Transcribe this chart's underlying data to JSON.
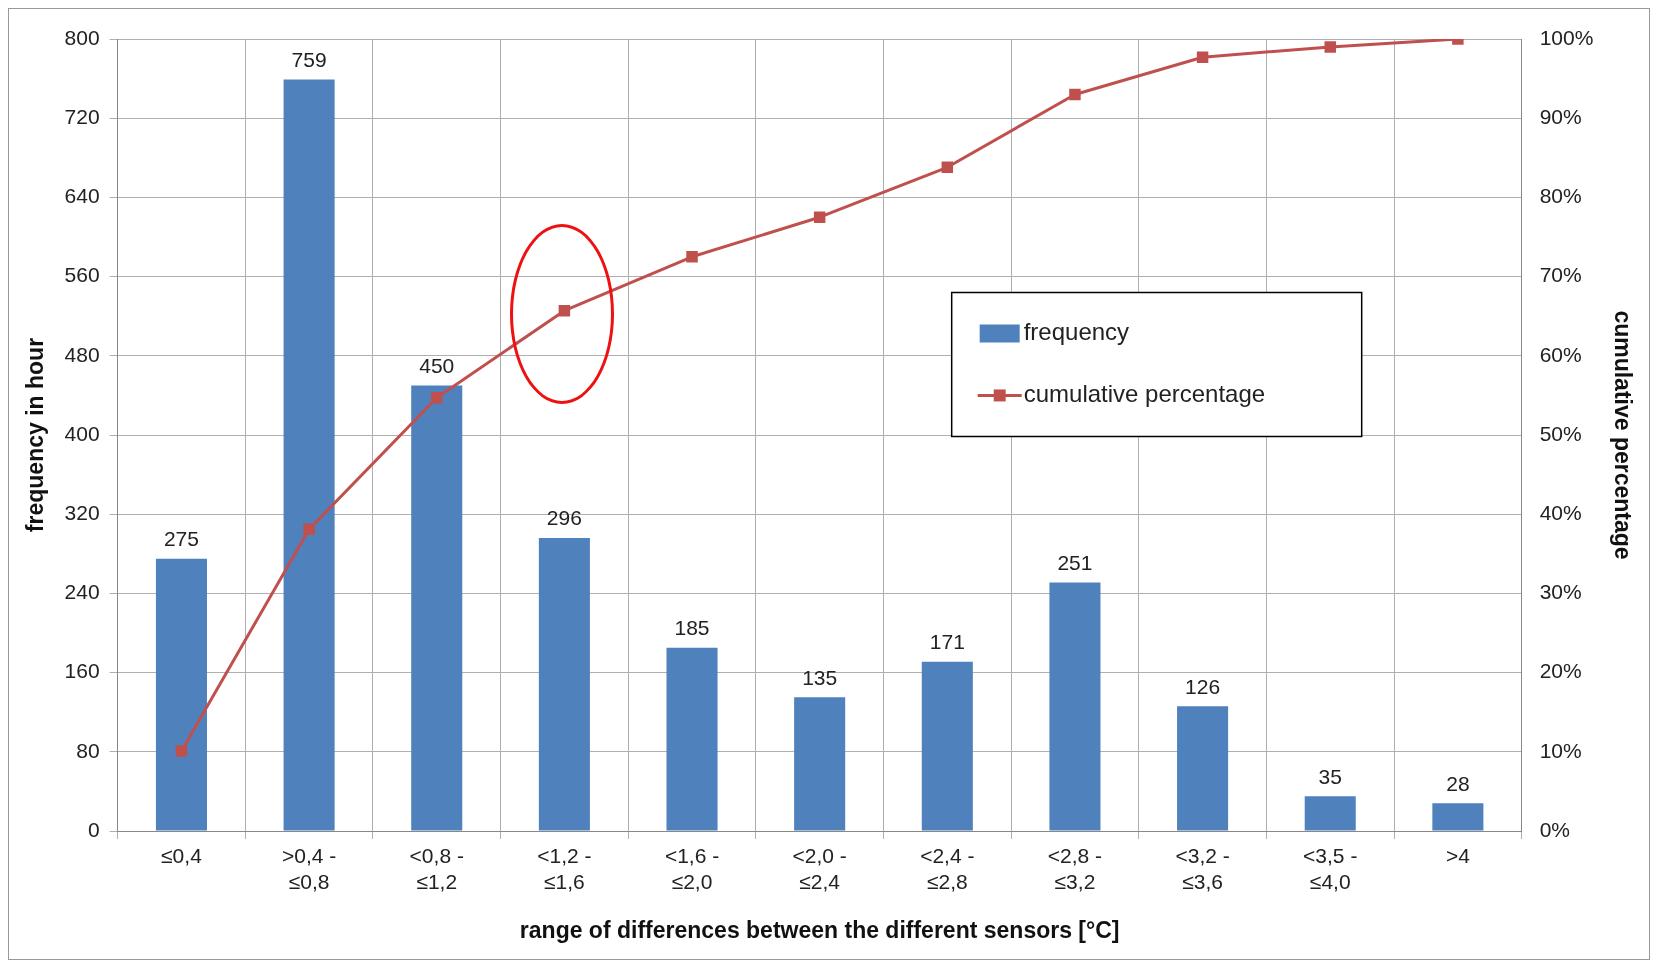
{
  "chart_data": {
    "type": "bar",
    "xlabel": "range of differences between the different sensors [°C]",
    "ylabel": "frequency in hour",
    "y2label": "cumulative percentage",
    "categories": [
      "≤0,4",
      ">0,4 - ≤0,8",
      "<0,8 - ≤1,2",
      "<1,2 - ≤1,6",
      "<1,6 - ≤2,0",
      "<2,0 - ≤2,4",
      "<2,4 - ≤2,8",
      "<2,8 - ≤3,2",
      "<3,2 - ≤3,6",
      "<3,5 - ≤4,0",
      ">4"
    ],
    "series": [
      {
        "name": "frequency",
        "color": "#4f81bd",
        "values": [
          275,
          759,
          450,
          296,
          185,
          135,
          171,
          251,
          126,
          35,
          28
        ],
        "value_labels": [
          "275",
          "759",
          "450",
          "296",
          "185",
          "135",
          "171",
          "251",
          "126",
          "35",
          "28"
        ]
      },
      {
        "name": "cumulative percentage",
        "type": "line",
        "axis": "y2",
        "color": "#c0504d",
        "values": [
          10.1,
          38.1,
          54.7,
          65.7,
          72.5,
          77.5,
          83.8,
          93.0,
          97.7,
          99.0,
          100
        ]
      }
    ],
    "ylim": [
      0,
      800
    ],
    "yticks": [
      0,
      80,
      160,
      240,
      320,
      400,
      480,
      560,
      640,
      720,
      800
    ],
    "y2lim": [
      0,
      100
    ],
    "y2ticks": [
      {
        "value": 0,
        "label": "0%"
      },
      {
        "value": 10,
        "label": "10%"
      },
      {
        "value": 20,
        "label": "20%"
      },
      {
        "value": 30,
        "label": "30%"
      },
      {
        "value": 40,
        "label": "40%"
      },
      {
        "value": 50,
        "label": "50%"
      },
      {
        "value": 60,
        "label": "60%"
      },
      {
        "value": 70,
        "label": "70%"
      },
      {
        "value": 80,
        "label": "80%"
      },
      {
        "value": 90,
        "label": "90%"
      },
      {
        "value": 100,
        "label": "100%"
      }
    ],
    "grid": true,
    "legend": "right",
    "marker": "square",
    "line_style": "solid"
  }
}
